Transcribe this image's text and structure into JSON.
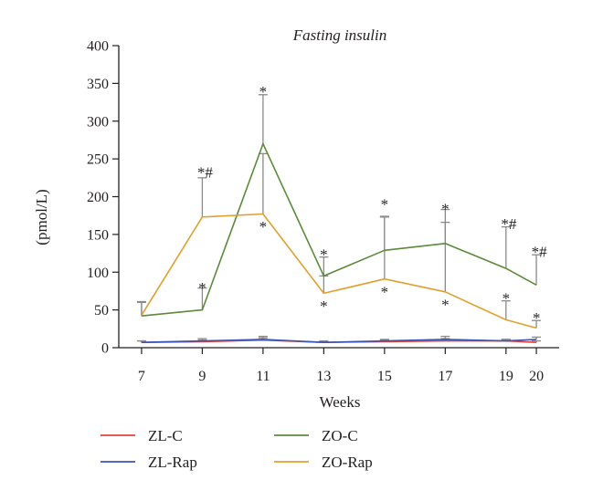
{
  "chart_data": {
    "type": "line",
    "title": "Fasting insulin",
    "xlabel": "Weeks",
    "ylabel": "(pmol/L)",
    "x": [
      7,
      9,
      11,
      13,
      15,
      17,
      19,
      20
    ],
    "xtick_labels": [
      "7",
      "9",
      "11",
      "13",
      "15",
      "17",
      "19",
      "20"
    ],
    "ylim": [
      0,
      400
    ],
    "yticks": [
      0,
      50,
      100,
      150,
      200,
      250,
      300,
      350,
      400
    ],
    "ytick_labels": [
      "0",
      "50",
      "100",
      "150",
      "200",
      "250",
      "300",
      "350",
      "400"
    ],
    "grid": false,
    "legend_position": "bottom",
    "series": [
      {
        "name": "ZL-C",
        "color": "#e8413a",
        "values": [
          7,
          8,
          10,
          7,
          8,
          9,
          9,
          7
        ],
        "errors": [
          2,
          2,
          3,
          1,
          2,
          3,
          2,
          2
        ]
      },
      {
        "name": "ZL-Rap",
        "color": "#3a55b4",
        "values": [
          7,
          9,
          11,
          7,
          9,
          11,
          9,
          11
        ],
        "errors": [
          2,
          3,
          4,
          2,
          2,
          4,
          2,
          3
        ]
      },
      {
        "name": "ZO-C",
        "color": "#5c8a3a",
        "values": [
          42,
          50,
          270,
          95,
          129,
          138,
          105,
          83
        ],
        "errors": [
          18,
          29,
          65,
          25,
          45,
          45,
          55,
          40
        ]
      },
      {
        "name": "ZO-Rap",
        "color": "#e0a030",
        "values": [
          43,
          173,
          177,
          72,
          91,
          74,
          37,
          26
        ],
        "errors": [
          18,
          52,
          80,
          23,
          82,
          92,
          25,
          10
        ]
      }
    ],
    "annotations": [
      {
        "x": 9,
        "y": 235,
        "text": "*#"
      },
      {
        "x": 9,
        "y": 82,
        "text": "*"
      },
      {
        "x": 11,
        "y": 342,
        "text": "*"
      },
      {
        "x": 11,
        "y": 163,
        "text": "*"
      },
      {
        "x": 13,
        "y": 126,
        "text": "*"
      },
      {
        "x": 13,
        "y": 58,
        "text": "*"
      },
      {
        "x": 15,
        "y": 193,
        "text": "*"
      },
      {
        "x": 15,
        "y": 77,
        "text": "*"
      },
      {
        "x": 17,
        "y": 187,
        "text": "*"
      },
      {
        "x": 17,
        "y": 60,
        "text": "*"
      },
      {
        "x": 19,
        "y": 167,
        "text": "*#"
      },
      {
        "x": 19,
        "y": 68,
        "text": "*"
      },
      {
        "x": 20,
        "y": 130,
        "text": "*#"
      },
      {
        "x": 20,
        "y": 42,
        "text": "*"
      }
    ]
  }
}
